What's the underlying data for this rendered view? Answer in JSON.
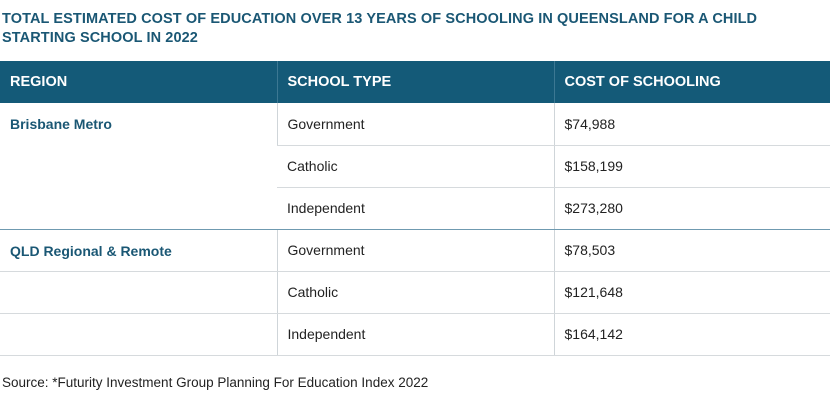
{
  "title": "TOTAL ESTIMATED COST OF EDUCATION OVER 13 YEARS OF SCHOOLING IN QUEENSLAND FOR A CHILD STARTING SCHOOL IN 2022",
  "colors": {
    "accent": "#1a5774",
    "header_bg": "#145a78",
    "header_text": "#ffffff",
    "body_text": "#222222",
    "row_border": "#d6dadd"
  },
  "table": {
    "headers": [
      "REGION",
      "SCHOOL TYPE",
      "COST OF SCHOOLING"
    ],
    "groups": [
      {
        "region": "Brisbane Metro",
        "rows": [
          {
            "school_type": "Government",
            "cost": "$74,988"
          },
          {
            "school_type": "Catholic",
            "cost": "$158,199"
          },
          {
            "school_type": "Independent",
            "cost": "$273,280"
          }
        ]
      },
      {
        "region": "QLD Regional & Remote",
        "rows": [
          {
            "school_type": "Government",
            "cost": "$78,503"
          },
          {
            "school_type": "Catholic",
            "cost": "$121,648"
          },
          {
            "school_type": "Independent",
            "cost": "$164,142"
          }
        ]
      }
    ]
  },
  "source": "Source: *Futurity Investment Group Planning For Education Index 2022"
}
